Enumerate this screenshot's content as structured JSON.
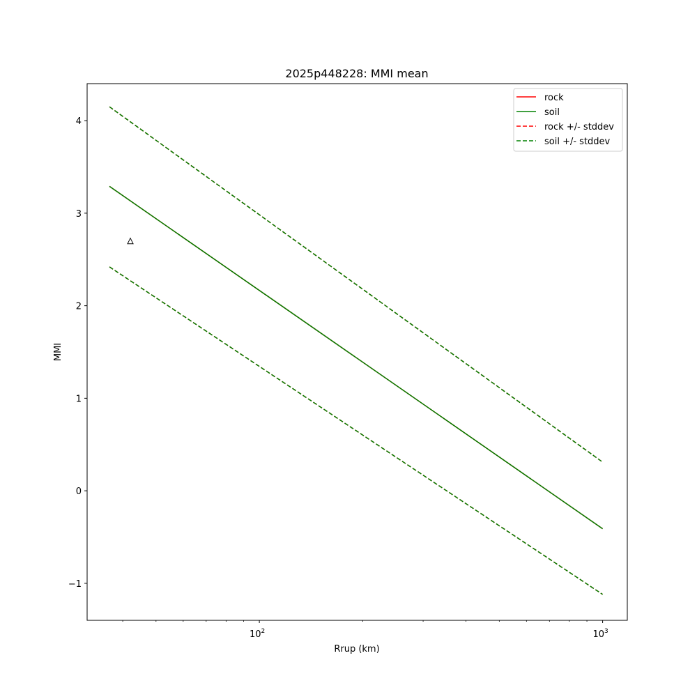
{
  "chart_data": {
    "type": "line",
    "title": "2025p448228: MMI mean",
    "xlabel": "Rrup (km)",
    "ylabel": "MMI",
    "xscale": "log",
    "xlim": [
      31.5,
      1180
    ],
    "ylim": [
      -1.4,
      4.4
    ],
    "x_ticks": [
      {
        "value": 100,
        "base": "10",
        "exp": "2"
      },
      {
        "value": 1000,
        "base": "10",
        "exp": "3"
      }
    ],
    "y_ticks": [
      {
        "value": -1,
        "label": "−1"
      },
      {
        "value": 0,
        "label": "0"
      },
      {
        "value": 1,
        "label": "1"
      },
      {
        "value": 2,
        "label": "2"
      },
      {
        "value": 3,
        "label": "3"
      },
      {
        "value": 4,
        "label": "4"
      }
    ],
    "grid": false,
    "legend_position": "top-right",
    "series": [
      {
        "name": "rock",
        "style": "solid",
        "color": "#ff0000",
        "x": [
          36.6,
          1000
        ],
        "y": [
          3.29,
          -0.41
        ]
      },
      {
        "name": "soil",
        "style": "solid",
        "color": "#008000",
        "x": [
          36.6,
          1000
        ],
        "y": [
          3.29,
          -0.41
        ]
      },
      {
        "name": "rock +/- stddev",
        "style": "dashed",
        "color": "#ff0000",
        "x": [
          36.6,
          1000
        ],
        "y": [
          4.15,
          0.31
        ],
        "y_lower": [
          2.42,
          -1.12
        ]
      },
      {
        "name": "soil +/- stddev",
        "style": "dashed",
        "color": "#008000",
        "x": [
          36.6,
          1000
        ],
        "y": [
          4.15,
          0.31
        ],
        "y_lower": [
          2.42,
          -1.12
        ]
      }
    ],
    "observations": [
      {
        "marker": "triangle",
        "x": 42.1,
        "y": 2.7
      }
    ]
  }
}
